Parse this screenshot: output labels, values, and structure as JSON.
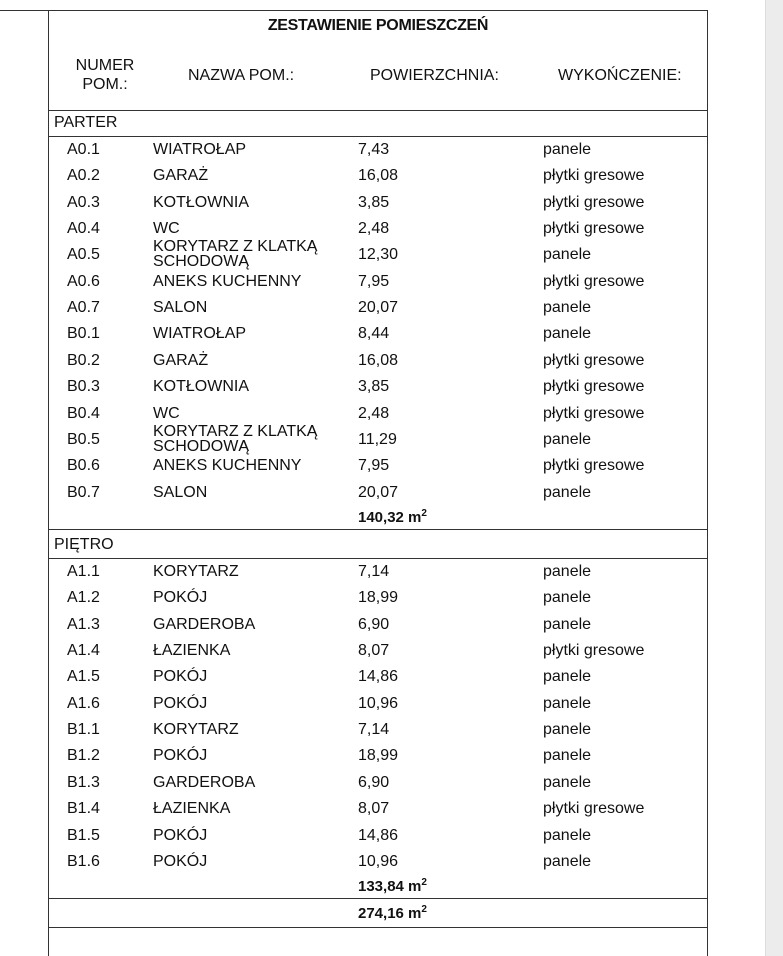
{
  "title": "ZESTAWIENIE POMIESZCZEŃ",
  "headers": {
    "numer_line1": "NUMER",
    "numer_line2": "POM.:",
    "nazwa": "NAZWA POM.:",
    "powierzchnia": "POWIERZCHNIA:",
    "wykonczenie": "WYKOŃCZENIE:"
  },
  "sections": [
    {
      "name": "PARTER",
      "total": "140,32 m",
      "rows": [
        [
          "A0.1",
          "WIATROŁAP",
          "7,43",
          "panele"
        ],
        [
          "A0.2",
          "GARAŻ",
          "16,08",
          "płytki gresowe"
        ],
        [
          "A0.3",
          "KOTŁOWNIA",
          "3,85",
          "płytki gresowe"
        ],
        [
          "A0.4",
          "WC",
          "2,48",
          "płytki gresowe"
        ],
        [
          "A0.5",
          "KORYTARZ Z KLATKĄ SCHODOWĄ",
          "12,30",
          "panele"
        ],
        [
          "A0.6",
          "ANEKS KUCHENNY",
          "7,95",
          "płytki gresowe"
        ],
        [
          "A0.7",
          "SALON",
          "20,07",
          "panele"
        ],
        [
          "B0.1",
          "WIATROŁAP",
          "8,44",
          "panele"
        ],
        [
          "B0.2",
          "GARAŻ",
          "16,08",
          "płytki gresowe"
        ],
        [
          "B0.3",
          "KOTŁOWNIA",
          "3,85",
          "płytki gresowe"
        ],
        [
          "B0.4",
          "WC",
          "2,48",
          "płytki gresowe"
        ],
        [
          "B0.5",
          "KORYTARZ Z KLATKĄ SCHODOWĄ",
          "11,29",
          "panele"
        ],
        [
          "B0.6",
          "ANEKS KUCHENNY",
          "7,95",
          "płytki gresowe"
        ],
        [
          "B0.7",
          "SALON",
          "20,07",
          "panele"
        ]
      ]
    },
    {
      "name": "PIĘTRO",
      "total": "133,84 m",
      "rows": [
        [
          "A1.1",
          "KORYTARZ",
          "7,14",
          "panele"
        ],
        [
          "A1.2",
          "POKÓJ",
          "18,99",
          "panele"
        ],
        [
          "A1.3",
          "GARDEROBA",
          "6,90",
          "panele"
        ],
        [
          "A1.4",
          "ŁAZIENKA",
          "8,07",
          "płytki gresowe"
        ],
        [
          "A1.5",
          "POKÓJ",
          "14,86",
          "panele"
        ],
        [
          "A1.6",
          "POKÓJ",
          "10,96",
          "panele"
        ],
        [
          "B1.1",
          "KORYTARZ",
          "7,14",
          "panele"
        ],
        [
          "B1.2",
          "POKÓJ",
          "18,99",
          "panele"
        ],
        [
          "B1.3",
          "GARDEROBA",
          "6,90",
          "panele"
        ],
        [
          "B1.4",
          "ŁAZIENKA",
          "8,07",
          "płytki gresowe"
        ],
        [
          "B1.5",
          "POKÓJ",
          "14,86",
          "panele"
        ],
        [
          "B1.6",
          "POKÓJ",
          "10,96",
          "panele"
        ]
      ]
    }
  ],
  "grand_total": "274,16 m",
  "unit_exponent": "2"
}
